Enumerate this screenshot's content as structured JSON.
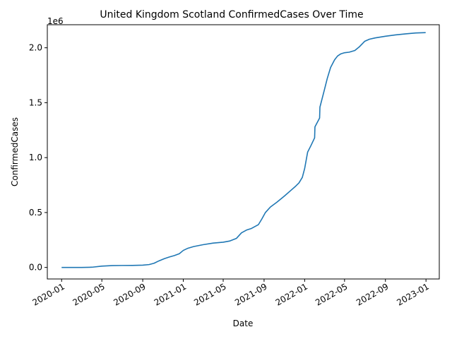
{
  "chart_data": {
    "type": "line",
    "title": "United Kingdom Scotland ConfirmedCases Over Time",
    "xlabel": "Date",
    "ylabel": "ConfirmedCases",
    "y_scale_label": "1e6",
    "xlim": [
      "2019-11-19",
      "2023-02-10"
    ],
    "ylim": [
      -105000,
      2210000
    ],
    "y_ticks": [
      0,
      500000,
      1000000,
      1500000,
      2000000
    ],
    "y_tick_labels": [
      "0.0",
      "0.5",
      "1.0",
      "1.5",
      "2.0"
    ],
    "x_ticks": [
      "2020-01-01",
      "2020-05-01",
      "2020-09-01",
      "2021-01-01",
      "2021-05-01",
      "2021-09-01",
      "2022-01-01",
      "2022-05-01",
      "2022-09-01",
      "2023-01-01"
    ],
    "x_tick_labels": [
      "2020-01",
      "2020-05",
      "2020-09",
      "2021-01",
      "2021-05",
      "2021-09",
      "2022-01",
      "2022-05",
      "2022-09",
      "2023-01"
    ],
    "grid": false,
    "line_color": "#1f77b4",
    "series": [
      {
        "x": [
          "2020-01-01",
          "2020-02-01",
          "2020-03-01",
          "2020-04-01",
          "2020-05-01",
          "2020-06-01",
          "2020-07-01",
          "2020-08-01",
          "2020-09-01",
          "2020-09-20",
          "2020-10-05",
          "2020-10-20",
          "2020-11-05",
          "2020-11-20",
          "2020-12-05",
          "2020-12-20",
          "2021-01-01",
          "2021-01-15",
          "2021-02-01",
          "2021-03-01",
          "2021-04-01",
          "2021-05-01",
          "2021-05-20",
          "2021-06-10",
          "2021-06-25",
          "2021-07-10",
          "2021-07-25",
          "2021-08-15",
          "2021-08-25",
          "2021-09-05",
          "2021-09-20",
          "2021-10-10",
          "2021-11-01",
          "2021-11-20",
          "2021-12-05",
          "2021-12-15",
          "2021-12-25",
          "2022-01-01",
          "2022-01-10",
          "2022-01-20",
          "2022-01-31",
          "2022-02-01",
          "2022-02-15",
          "2022-02-16",
          "2022-02-28",
          "2022-03-10",
          "2022-03-20",
          "2022-04-01",
          "2022-04-10",
          "2022-04-20",
          "2022-05-01",
          "2022-05-15",
          "2022-06-01",
          "2022-06-15",
          "2022-07-01",
          "2022-07-15",
          "2022-08-01",
          "2022-09-01",
          "2022-10-01",
          "2022-11-01",
          "2022-12-01",
          "2022-12-31"
        ],
        "y": [
          0,
          0,
          0,
          2000,
          12000,
          17000,
          18000,
          18500,
          21000,
          26000,
          38000,
          60000,
          80000,
          95000,
          108000,
          125000,
          155000,
          175000,
          190000,
          207000,
          222000,
          230000,
          240000,
          265000,
          315000,
          340000,
          355000,
          390000,
          440000,
          500000,
          550000,
          595000,
          650000,
          700000,
          740000,
          770000,
          820000,
          900000,
          1050000,
          1110000,
          1180000,
          1280000,
          1360000,
          1460000,
          1600000,
          1720000,
          1820000,
          1890000,
          1925000,
          1945000,
          1955000,
          1960000,
          1975000,
          2010000,
          2060000,
          2078000,
          2090000,
          2105000,
          2117000,
          2127000,
          2135000,
          2138000
        ]
      }
    ]
  }
}
